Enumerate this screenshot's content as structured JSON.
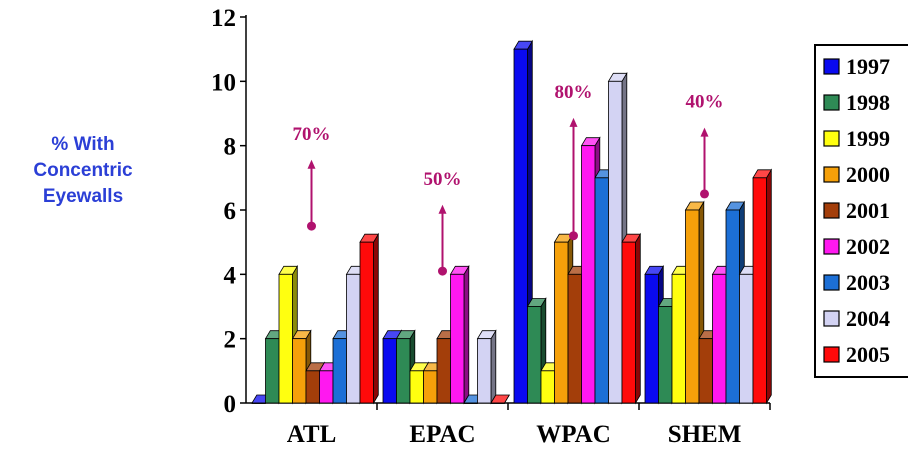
{
  "side_label": [
    "% With",
    "Concentric",
    "Eyewalls"
  ],
  "colors": {
    "axis": "#000000",
    "annotation": "#b0126e"
  },
  "chart_data": {
    "type": "bar",
    "title": "",
    "xlabel": "",
    "ylabel": "",
    "ylim": [
      0,
      12
    ],
    "yticks": [
      0,
      2,
      4,
      6,
      8,
      10,
      12
    ],
    "categories": [
      "ATL",
      "EPAC",
      "WPAC",
      "SHEM"
    ],
    "legend_position": "right",
    "grid": false,
    "series": [
      {
        "name": "1997",
        "color": "#0a0af0",
        "values": [
          0,
          2,
          11,
          4
        ]
      },
      {
        "name": "1998",
        "color": "#2e8a55",
        "values": [
          2,
          2,
          3,
          3
        ]
      },
      {
        "name": "1999",
        "color": "#ffff10",
        "values": [
          4,
          1,
          1,
          4
        ]
      },
      {
        "name": "2000",
        "color": "#f5a00a",
        "values": [
          2,
          1,
          5,
          6
        ]
      },
      {
        "name": "2001",
        "color": "#a33e0a",
        "values": [
          1,
          2,
          4,
          2
        ]
      },
      {
        "name": "2002",
        "color": "#ff18f0",
        "values": [
          1,
          4,
          8,
          4
        ]
      },
      {
        "name": "2003",
        "color": "#1c6fd6",
        "values": [
          2,
          0,
          7,
          6
        ]
      },
      {
        "name": "2004",
        "color": "#d3d3f3",
        "values": [
          4,
          2,
          10,
          4
        ]
      },
      {
        "name": "2005",
        "color": "#ff0a0a",
        "values": [
          5,
          0,
          5,
          7
        ]
      }
    ],
    "annotations": [
      {
        "category": "ATL",
        "text": "70%",
        "arrow_from": 5.5,
        "arrow_to": 7.5
      },
      {
        "category": "EPAC",
        "text": "50%",
        "arrow_from": 4.1,
        "arrow_to": 6.1
      },
      {
        "category": "WPAC",
        "text": "80%",
        "arrow_from": 5.2,
        "arrow_to": 8.8
      },
      {
        "category": "SHEM",
        "text": "40%",
        "arrow_from": 6.5,
        "arrow_to": 8.5
      }
    ]
  }
}
